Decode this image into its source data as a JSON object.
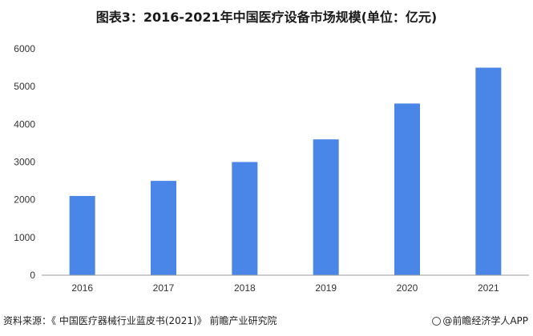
{
  "title": "图表3：2016-2021年中国医疗设备市场规模(单位：亿元)",
  "source": "资料来源：《 中国医疗器械行业蓝皮书(2021)》 前瞻产业研究院",
  "brand": "@前瞻经济学人APP",
  "colors": {
    "bar": "#4A86E8",
    "axis": "#999999"
  },
  "chart_data": {
    "type": "bar",
    "title": "图表3：2016-2021年中国医疗设备市场规模(单位：亿元)",
    "categories": [
      "2016",
      "2017",
      "2018",
      "2019",
      "2020",
      "2021"
    ],
    "values": [
      2100,
      2500,
      3000,
      3600,
      4550,
      5500
    ],
    "ylim": [
      0,
      6000
    ],
    "yticks": [
      0,
      1000,
      2000,
      3000,
      4000,
      5000,
      6000
    ],
    "xlabel": "",
    "ylabel": "",
    "grid": false,
    "legend": "none"
  }
}
